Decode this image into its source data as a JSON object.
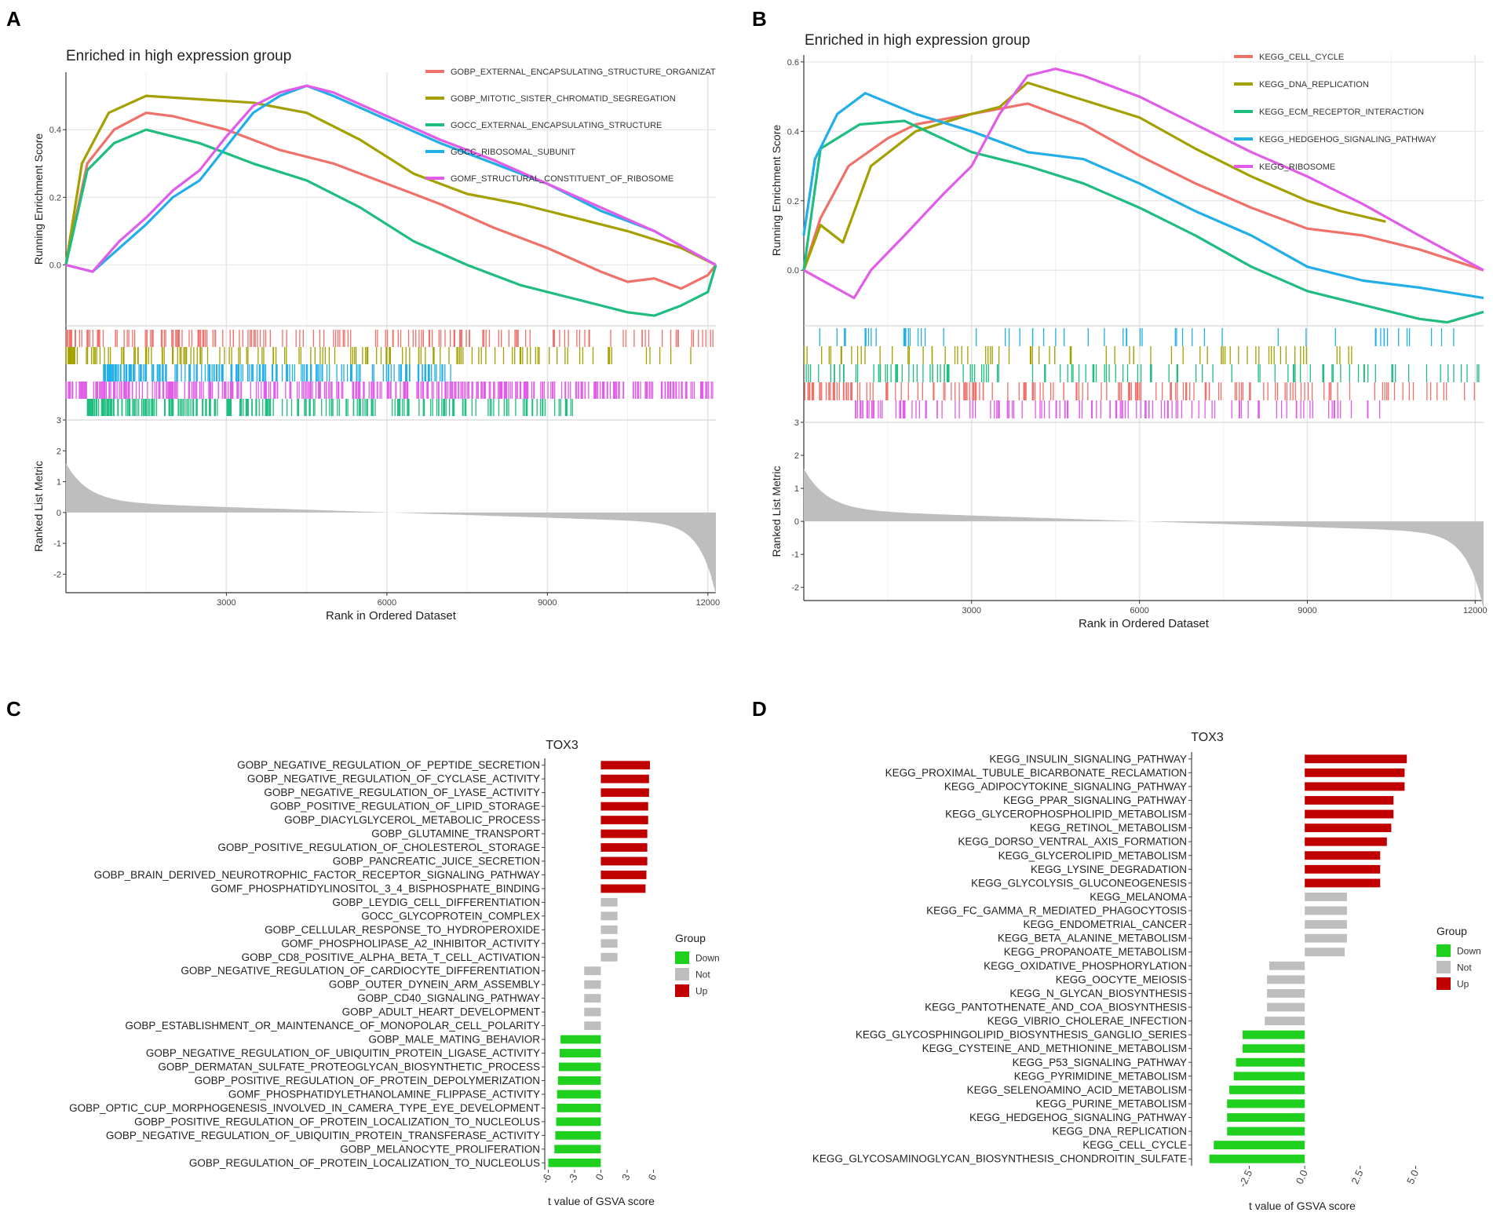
{
  "colors": {
    "series": [
      "#f0706a",
      "#a3a000",
      "#1fbd80",
      "#22aee8",
      "#e15ce8"
    ],
    "up": "#c00000",
    "not": "#bebebe",
    "down": "#1fd01f",
    "grid": "#e6e6e6",
    "metric": "#bebebe"
  },
  "panels": {
    "A": {
      "label": "A",
      "title": "Enriched in high expression group"
    },
    "B": {
      "label": "B",
      "title": "Enriched in high expression group"
    },
    "C": {
      "label": "C"
    },
    "D": {
      "label": "D"
    }
  },
  "chart_data": [
    {
      "id": "A",
      "type": "line",
      "title": "Enriched in high expression group",
      "xlabel": "Rank in Ordered Dataset",
      "ylabel": "Running Enrichment Score",
      "xlim": [
        1,
        12150
      ],
      "ylim": [
        -0.18,
        0.57
      ],
      "x_ticks": [
        "3000",
        "6000",
        "9000",
        "12000"
      ],
      "x_tick_values": [
        3000,
        6000,
        9000,
        12000
      ],
      "y_ticks": [
        "0.0",
        "0.2",
        "0.4"
      ],
      "y_tick_values": [
        0,
        0.2,
        0.4
      ],
      "series": [
        {
          "name": "GOBP_EXTERNAL_ENCAPSULATING_STRUCTURE_ORGANIZAT",
          "x": [
            0,
            400,
            900,
            1500,
            2000,
            3000,
            4000,
            5000,
            6000,
            7000,
            8000,
            9000,
            10000,
            10500,
            11000,
            11500,
            12000,
            12150
          ],
          "values": [
            0,
            0.3,
            0.4,
            0.45,
            0.44,
            0.4,
            0.34,
            0.3,
            0.24,
            0.18,
            0.11,
            0.05,
            -0.02,
            -0.05,
            -0.04,
            -0.07,
            -0.03,
            0
          ]
        },
        {
          "name": "GOBP_MITOTIC_SISTER_CHROMATID_SEGREGATION",
          "x": [
            0,
            300,
            800,
            1500,
            2500,
            3500,
            4500,
            5500,
            6500,
            7500,
            8500,
            9500,
            10500,
            11500,
            12150
          ],
          "values": [
            0,
            0.3,
            0.45,
            0.5,
            0.49,
            0.48,
            0.45,
            0.37,
            0.27,
            0.21,
            0.18,
            0.14,
            0.1,
            0.05,
            0
          ]
        },
        {
          "name": "GOCC_EXTERNAL_ENCAPSULATING_STRUCTURE",
          "x": [
            0,
            400,
            900,
            1500,
            2500,
            3500,
            4500,
            5500,
            6500,
            7500,
            8500,
            9500,
            10500,
            11000,
            11500,
            12000,
            12150
          ],
          "values": [
            0,
            0.28,
            0.36,
            0.4,
            0.36,
            0.3,
            0.25,
            0.17,
            0.07,
            0.0,
            -0.06,
            -0.1,
            -0.14,
            -0.15,
            -0.12,
            -0.08,
            0
          ]
        },
        {
          "name": "GOCC_RIBOSOMAL_SUBUNIT",
          "x": [
            0,
            500,
            1000,
            1500,
            2000,
            2500,
            3000,
            3500,
            4000,
            4500,
            5000,
            6000,
            7000,
            8000,
            9000,
            10000,
            11000,
            12150
          ],
          "values": [
            0,
            -0.02,
            0.05,
            0.12,
            0.2,
            0.25,
            0.35,
            0.45,
            0.5,
            0.53,
            0.5,
            0.43,
            0.36,
            0.3,
            0.24,
            0.16,
            0.1,
            0
          ]
        },
        {
          "name": "GOMF_STRUCTURAL_CONSTITUENT_OF_RIBOSOME",
          "x": [
            0,
            500,
            1000,
            1500,
            2000,
            2500,
            3000,
            3500,
            4000,
            4500,
            5000,
            6000,
            7000,
            8000,
            9000,
            10000,
            11000,
            12150
          ],
          "values": [
            0,
            -0.02,
            0.07,
            0.14,
            0.22,
            0.28,
            0.38,
            0.47,
            0.51,
            0.53,
            0.51,
            0.44,
            0.37,
            0.31,
            0.24,
            0.17,
            0.1,
            0
          ]
        }
      ],
      "metric_ylabel": "Ranked List Metric",
      "metric_ylim": [
        -2.6,
        3
      ],
      "metric_ticks": [
        "3",
        "2",
        "1",
        "0",
        "-1",
        "-2"
      ],
      "metric_tick_values": [
        3,
        2,
        1,
        0,
        -1,
        -2
      ]
    },
    {
      "id": "B",
      "type": "line",
      "title": "Enriched in high expression group",
      "xlabel": "Rank in Ordered Dataset",
      "ylabel": "Running Enrichment Score",
      "xlim": [
        1,
        12150
      ],
      "ylim": [
        -0.16,
        0.62
      ],
      "x_ticks": [
        "3000",
        "6000",
        "9000",
        "12000"
      ],
      "x_tick_values": [
        3000,
        6000,
        9000,
        12000
      ],
      "y_ticks": [
        "0.0",
        "0.2",
        "0.4",
        "0.6"
      ],
      "y_tick_values": [
        0,
        0.2,
        0.4,
        0.6
      ],
      "series": [
        {
          "name": "KEGG_CELL_CYCLE",
          "x": [
            0,
            300,
            800,
            1500,
            2000,
            3000,
            4000,
            5000,
            6000,
            7000,
            8000,
            9000,
            10000,
            11000,
            12150
          ],
          "values": [
            0.0,
            0.15,
            0.3,
            0.38,
            0.42,
            0.45,
            0.48,
            0.42,
            0.33,
            0.25,
            0.18,
            0.12,
            0.1,
            0.06,
            0
          ]
        },
        {
          "name": "KEGG_DNA_REPLICATION",
          "x": [
            0,
            300,
            700,
            1200,
            2000,
            3000,
            3500,
            4000,
            5000,
            6000,
            7000,
            8000,
            9000,
            9600,
            10400
          ],
          "values": [
            0.0,
            0.13,
            0.08,
            0.3,
            0.4,
            0.45,
            0.47,
            0.54,
            0.49,
            0.44,
            0.35,
            0.27,
            0.2,
            0.17,
            0.14
          ]
        },
        {
          "name": "KEGG_ECM_RECEPTOR_INTERACTION",
          "x": [
            0,
            300,
            1000,
            1800,
            3000,
            4000,
            5000,
            6000,
            7000,
            8000,
            9000,
            10000,
            11000,
            11500,
            12150
          ],
          "values": [
            0.0,
            0.35,
            0.42,
            0.43,
            0.34,
            0.3,
            0.25,
            0.18,
            0.1,
            0.01,
            -0.06,
            -0.1,
            -0.14,
            -0.15,
            -0.12
          ]
        },
        {
          "name": "KEGG_HEDGEHOG_SIGNALING_PATHWAY",
          "x": [
            0,
            200,
            600,
            1100,
            2000,
            3000,
            4000,
            5000,
            6000,
            7000,
            8000,
            9000,
            10000,
            11000,
            12150
          ],
          "values": [
            0.1,
            0.32,
            0.45,
            0.51,
            0.45,
            0.4,
            0.34,
            0.32,
            0.25,
            0.17,
            0.1,
            0.01,
            -0.03,
            -0.05,
            -0.08
          ]
        },
        {
          "name": "KEGG_RIBOSOME",
          "x": [
            0,
            900,
            1200,
            1800,
            2500,
            3000,
            3500,
            4000,
            4500,
            5000,
            6000,
            7000,
            8000,
            9000,
            10000,
            11000,
            12150
          ],
          "values": [
            0.0,
            -0.08,
            0.0,
            0.1,
            0.22,
            0.3,
            0.45,
            0.56,
            0.58,
            0.56,
            0.5,
            0.42,
            0.34,
            0.27,
            0.19,
            0.1,
            0.0
          ]
        }
      ],
      "metric_ylabel": "Ranked List Metric",
      "metric_ylim": [
        -2.4,
        3
      ],
      "metric_ticks": [
        "3",
        "2",
        "1",
        "0",
        "-1",
        "-2"
      ],
      "metric_tick_values": [
        3,
        2,
        1,
        0,
        -1,
        -2
      ]
    },
    {
      "id": "C",
      "type": "bar",
      "orientation": "horizontal",
      "title": "TOX3",
      "xlabel": "t value of GSVA score",
      "xlim": [
        -6.4,
        6.5
      ],
      "x_ticks": [
        "-6",
        "-3",
        "0",
        "3",
        "6"
      ],
      "x_tick_values": [
        -6,
        -3,
        0,
        3,
        6
      ],
      "legend_title": "Group",
      "legend": [
        "Down",
        "Not",
        "Up"
      ],
      "categories": [
        "GOBP_NEGATIVE_REGULATION_OF_PEPTIDE_SECRETION",
        "GOBP_NEGATIVE_REGULATION_OF_CYCLASE_ACTIVITY",
        "GOBP_NEGATIVE_REGULATION_OF_LYASE_ACTIVITY",
        "GOBP_POSITIVE_REGULATION_OF_LIPID_STORAGE",
        "GOBP_DIACYLGLYCEROL_METABOLIC_PROCESS",
        "GOBP_GLUTAMINE_TRANSPORT",
        "GOBP_POSITIVE_REGULATION_OF_CHOLESTEROL_STORAGE",
        "GOBP_PANCREATIC_JUICE_SECRETION",
        "GOBP_BRAIN_DERIVED_NEUROTROPHIC_FACTOR_RECEPTOR_SIGNALING_PATHWAY",
        "GOMF_PHOSPHATIDYLINOSITOL_3_4_BISPHOSPHATE_BINDING",
        "GOBP_LEYDIG_CELL_DIFFERENTIATION",
        "GOCC_GLYCOPROTEIN_COMPLEX",
        "GOBP_CELLULAR_RESPONSE_TO_HYDROPEROXIDE",
        "GOMF_PHOSPHOLIPASE_A2_INHIBITOR_ACTIVITY",
        "GOBP_CD8_POSITIVE_ALPHA_BETA_T_CELL_ACTIVATION",
        "GOBP_NEGATIVE_REGULATION_OF_CARDIOCYTE_DIFFERENTIATION",
        "GOBP_OUTER_DYNEIN_ARM_ASSEMBLY",
        "GOBP_CD40_SIGNALING_PATHWAY",
        "GOBP_ADULT_HEART_DEVELOPMENT",
        "GOBP_ESTABLISHMENT_OR_MAINTENANCE_OF_MONOPOLAR_CELL_POLARITY",
        "GOBP_MALE_MATING_BEHAVIOR",
        "GOBP_NEGATIVE_REGULATION_OF_UBIQUITIN_PROTEIN_LIGASE_ACTIVITY",
        "GOBP_DERMATAN_SULFATE_PROTEOGLYCAN_BIOSYNTHETIC_PROCESS",
        "GOBP_POSITIVE_REGULATION_OF_PROTEIN_DEPOLYMERIZATION",
        "GOMF_PHOSPHATIDYLETHANOLAMINE_FLIPPASE_ACTIVITY",
        "GOBP_OPTIC_CUP_MORPHOGENESIS_INVOLVED_IN_CAMERA_TYPE_EYE_DEVELOPMENT",
        "GOBP_POSITIVE_REGULATION_OF_PROTEIN_LOCALIZATION_TO_NUCLEOLUS",
        "GOBP_NEGATIVE_REGULATION_OF_UBIQUITIN_PROTEIN_TRANSFERASE_ACTIVITY",
        "GOBP_MELANOCYTE_PROLIFERATION",
        "GOBP_REGULATION_OF_PROTEIN_LOCALIZATION_TO_NUCLEOLUS"
      ],
      "values": [
        5.6,
        5.5,
        5.5,
        5.4,
        5.4,
        5.3,
        5.3,
        5.3,
        5.2,
        5.1,
        1.9,
        1.9,
        1.9,
        1.9,
        1.9,
        -1.9,
        -1.9,
        -1.9,
        -1.9,
        -1.9,
        -4.6,
        -4.7,
        -4.8,
        -4.9,
        -5.0,
        -5.0,
        -5.1,
        -5.2,
        -5.3,
        -6.0
      ],
      "groups": [
        "Up",
        "Up",
        "Up",
        "Up",
        "Up",
        "Up",
        "Up",
        "Up",
        "Up",
        "Up",
        "Not",
        "Not",
        "Not",
        "Not",
        "Not",
        "Not",
        "Not",
        "Not",
        "Not",
        "Not",
        "Down",
        "Down",
        "Down",
        "Down",
        "Down",
        "Down",
        "Down",
        "Down",
        "Down",
        "Down"
      ]
    },
    {
      "id": "D",
      "type": "bar",
      "orientation": "horizontal",
      "title": "TOX3",
      "xlabel": "t value of GSVA score",
      "xlim": [
        -5.1,
        5.3
      ],
      "x_ticks": [
        "-2.5",
        "0.0",
        "2.5",
        "5.0"
      ],
      "x_tick_values": [
        -2.5,
        0,
        2.5,
        5
      ],
      "legend_title": "Group",
      "legend": [
        "Down",
        "Not",
        "Up"
      ],
      "categories": [
        "KEGG_INSULIN_SIGNALING_PATHWAY",
        "KEGG_PROXIMAL_TUBULE_BICARBONATE_RECLAMATION",
        "KEGG_ADIPOCYTOKINE_SIGNALING_PATHWAY",
        "KEGG_PPAR_SIGNALING_PATHWAY",
        "KEGG_GLYCEROPHOSPHOLIPID_METABOLISM",
        "KEGG_RETINOL_METABOLISM",
        "KEGG_DORSO_VENTRAL_AXIS_FORMATION",
        "KEGG_GLYCEROLIPID_METABOLISM",
        "KEGG_LYSINE_DEGRADATION",
        "KEGG_GLYCOLYSIS_GLUCONEOGENESIS",
        "KEGG_MELANOMA",
        "KEGG_FC_GAMMA_R_MEDIATED_PHAGOCYTOSIS",
        "KEGG_ENDOMETRIAL_CANCER",
        "KEGG_BETA_ALANINE_METABOLISM",
        "KEGG_PROPANOATE_METABOLISM",
        "KEGG_OXIDATIVE_PHOSPHORYLATION",
        "KEGG_OOCYTE_MEIOSIS",
        "KEGG_N_GLYCAN_BIOSYNTHESIS",
        "KEGG_PANTOTHENATE_AND_COA_BIOSYNTHESIS",
        "KEGG_VIBRIO_CHOLERAE_INFECTION",
        "KEGG_GLYCOSPHINGOLIPID_BIOSYNTHESIS_GANGLIO_SERIES",
        "KEGG_CYSTEINE_AND_METHIONINE_METABOLISM",
        "KEGG_P53_SIGNALING_PATHWAY",
        "KEGG_PYRIMIDINE_METABOLISM",
        "KEGG_SELENOAMINO_ACID_METABOLISM",
        "KEGG_PURINE_METABOLISM",
        "KEGG_HEDGEHOG_SIGNALING_PATHWAY",
        "KEGG_DNA_REPLICATION",
        "KEGG_CELL_CYCLE",
        "KEGG_GLYCOSAMINOGLYCAN_BIOSYNTHESIS_CHONDROITIN_SULFATE"
      ],
      "values": [
        4.6,
        4.5,
        4.5,
        4.0,
        4.0,
        3.9,
        3.7,
        3.4,
        3.4,
        3.4,
        1.9,
        1.9,
        1.9,
        1.9,
        1.8,
        -1.6,
        -1.7,
        -1.7,
        -1.7,
        -1.8,
        -2.8,
        -2.8,
        -3.1,
        -3.2,
        -3.4,
        -3.5,
        -3.5,
        -3.5,
        -4.1,
        -4.3
      ],
      "groups": [
        "Up",
        "Up",
        "Up",
        "Up",
        "Up",
        "Up",
        "Up",
        "Up",
        "Up",
        "Up",
        "Not",
        "Not",
        "Not",
        "Not",
        "Not",
        "Not",
        "Not",
        "Not",
        "Not",
        "Not",
        "Down",
        "Down",
        "Down",
        "Down",
        "Down",
        "Down",
        "Down",
        "Down",
        "Down",
        "Down"
      ]
    }
  ]
}
